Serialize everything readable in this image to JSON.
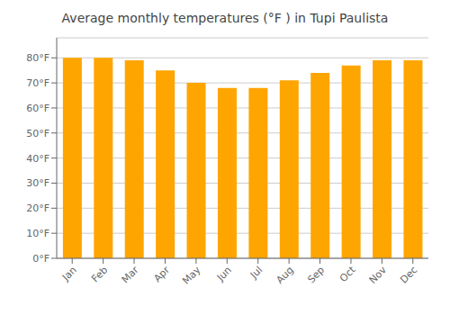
{
  "chart_data": {
    "type": "bar",
    "title": "Average monthly temperatures (°F ) in Tupi Paulista",
    "categories": [
      "Jan",
      "Feb",
      "Mar",
      "Apr",
      "May",
      "Jun",
      "Jul",
      "Aug",
      "Sep",
      "Oct",
      "Nov",
      "Dec"
    ],
    "values": [
      80,
      80,
      79,
      75,
      70,
      68,
      68,
      71,
      74,
      77,
      79,
      79
    ],
    "color": "#FFA500",
    "ylim": [
      0,
      88
    ],
    "yticks": [
      {
        "value": 0,
        "label": "0°F"
      },
      {
        "value": 10,
        "label": "10°F"
      },
      {
        "value": 20,
        "label": "20°F"
      },
      {
        "value": 30,
        "label": "30°F"
      },
      {
        "value": 40,
        "label": "40°F"
      },
      {
        "value": 50,
        "label": "50°F"
      },
      {
        "value": 60,
        "label": "60°F"
      },
      {
        "value": 70,
        "label": "70°F"
      },
      {
        "value": 80,
        "label": "80°F"
      }
    ],
    "grid": true
  }
}
